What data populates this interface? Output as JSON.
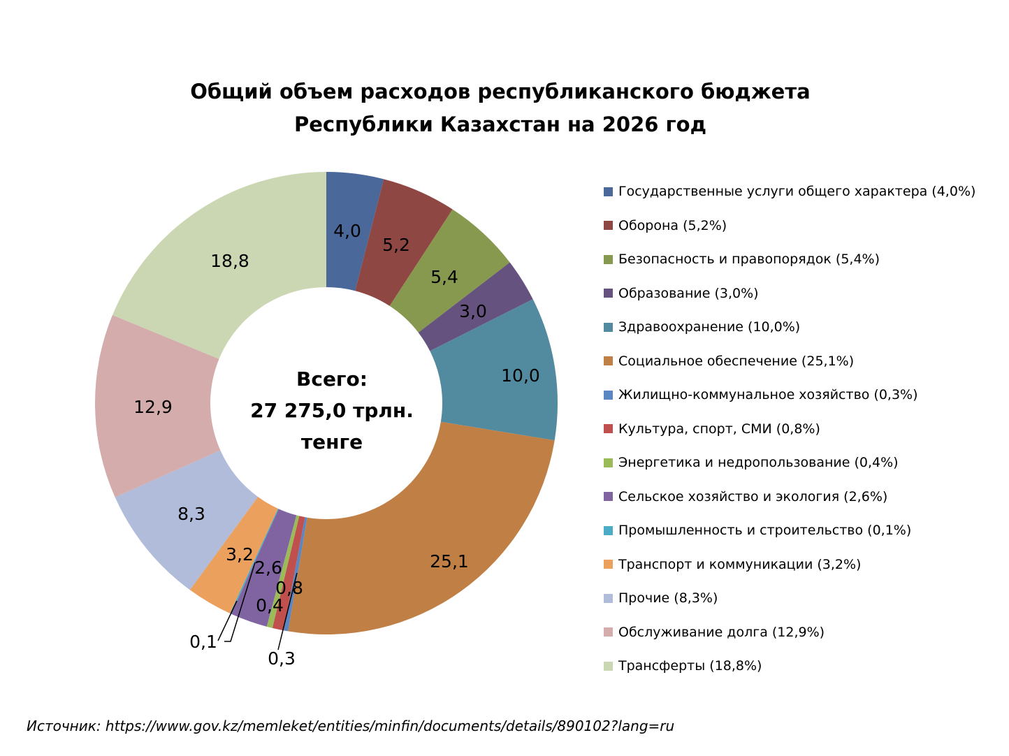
{
  "chart_data": {
    "type": "donut",
    "title": [
      "Общий объем расходов республиканского бюджета",
      "Республики Казахстан на 2026 год"
    ],
    "center_label": [
      "Всего:",
      "27 275,0 трлн.",
      "тенге"
    ],
    "unit": "%",
    "legend_position": "right",
    "slices": [
      {
        "name": "Государственные услуги общего характера (4,0%)",
        "value": 4.0,
        "label": "4,0",
        "color": "#4A6899"
      },
      {
        "name": "Оборона (5,2%)",
        "value": 5.2,
        "label": "5,2",
        "color": "#8F4744"
      },
      {
        "name": "Безопасность и правопорядок (5,4%)",
        "value": 5.4,
        "label": "5,4",
        "color": "#87994F"
      },
      {
        "name": "Образование (3,0%)",
        "value": 3.0,
        "label": "3,0",
        "color": "#65527F"
      },
      {
        "name": "Здравоохранение (10,0%)",
        "value": 10.0,
        "label": "10,0",
        "color": "#528B9F"
      },
      {
        "name": "Социальное обеспечение (25,1%)",
        "value": 25.1,
        "label": "25,1",
        "color": "#C07F44"
      },
      {
        "name": "Жилищно-коммунальное хозяйство (0,3%)",
        "value": 0.3,
        "label": "0,3",
        "color": "#5B86C4"
      },
      {
        "name": "Культура, спорт, СМИ (0,8%)",
        "value": 0.8,
        "label": "0,8",
        "color": "#C0504D"
      },
      {
        "name": "Энергетика и недропользование (0,4%)",
        "value": 0.4,
        "label": "0,4",
        "color": "#9BBB59"
      },
      {
        "name": "Сельское хозяйство и экология (2,6%)",
        "value": 2.6,
        "label": "2,6",
        "color": "#8064A2"
      },
      {
        "name": "Промышленность и строительство (0,1%)",
        "value": 0.1,
        "label": "0,1",
        "color": "#4BACC6"
      },
      {
        "name": "Транспорт и коммуникации (3,2%)",
        "value": 3.2,
        "label": "3,2",
        "color": "#EBA05D"
      },
      {
        "name": "Прочие (8,3%)",
        "value": 8.3,
        "label": "8,3",
        "color": "#B0BCDA"
      },
      {
        "name": "Обслуживание долга (12,9%)",
        "value": 12.9,
        "label": "12,9",
        "color": "#D3ACAB"
      },
      {
        "name": "Трансферты (18,8%)",
        "value": 18.8,
        "label": "18,8",
        "color": "#CBD6B2"
      }
    ]
  },
  "source": "Источник: https://www.gov.kz/memleket/entities/minfin/documents/details/890102?lang=ru"
}
